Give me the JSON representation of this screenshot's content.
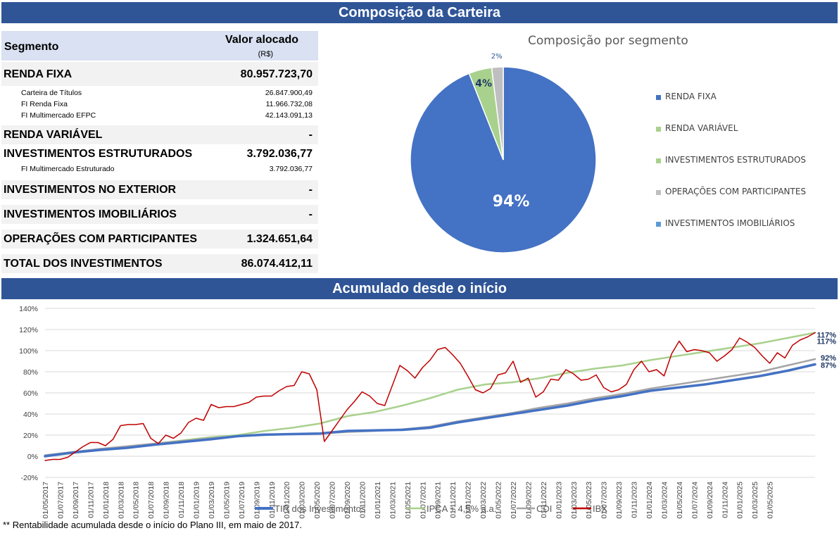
{
  "banner_top": "Composição da Carteira",
  "banner_bottom": "Acumulado desde o início",
  "table": {
    "header_segment": "Segmento",
    "header_value": "Valor alocado",
    "header_unit": "(R$)",
    "rows": [
      {
        "kind": "main",
        "label": "RENDA FIXA",
        "value": "80.957.723,70",
        "shaded": true
      },
      {
        "kind": "sub",
        "label": "Carteira de Títulos",
        "value": "26.847.900,49",
        "shaded": false
      },
      {
        "kind": "sub",
        "label": "FI Renda Fixa",
        "value": "11.966.732,08",
        "shaded": false
      },
      {
        "kind": "sub",
        "label": "FI Multimercado EFPC",
        "value": "42.143.091,13",
        "shaded": false
      },
      {
        "kind": "main",
        "label": "RENDA VARIÁVEL",
        "value": "-",
        "shaded": true
      },
      {
        "kind": "main",
        "label": "INVESTIMENTOS ESTRUTURADOS",
        "value": "3.792.036,77",
        "shaded": false
      },
      {
        "kind": "sub",
        "label": "FI Multimercado Estruturado",
        "value": "3.792.036,77",
        "shaded": false
      },
      {
        "kind": "main",
        "label": "INVESTIMENTOS NO EXTERIOR",
        "value": "-",
        "shaded": true
      },
      {
        "kind": "main",
        "label": "INVESTIMENTOS IMOBILIÁRIOS",
        "value": "-",
        "shaded": true
      },
      {
        "kind": "main",
        "label": "OPERAÇÕES COM PARTICIPANTES",
        "value": "1.324.651,64",
        "shaded": true
      },
      {
        "kind": "main",
        "label": "TOTAL DOS INVESTIMENTOS",
        "value": "86.074.412,11",
        "shaded": true
      }
    ]
  },
  "footnote": "** Rentabilidade acumulada desde o início do Plano III, em maio de 2017.",
  "chart_data": [
    {
      "type": "pie",
      "title": "Composição por segmento",
      "slices": [
        {
          "name": "RENDA FIXA",
          "value": 94,
          "label": "94%",
          "color": "#4472c4"
        },
        {
          "name": "RENDA VARIÁVEL",
          "value": 0,
          "label": "",
          "color": "#a9d18e"
        },
        {
          "name": "INVESTIMENTOS ESTRUTURADOS",
          "value": 4,
          "label": "4%",
          "color": "#a9d18e"
        },
        {
          "name": "OPERAÇÕES COM PARTICIPANTES",
          "value": 2,
          "label": "2%",
          "color": "#bfbfbf"
        },
        {
          "name": "INVESTIMENTOS IMOBILIÁRIOS",
          "value": 0,
          "label": "",
          "color": "#5b9bd5"
        }
      ],
      "legend_position": "right"
    },
    {
      "type": "line",
      "title": "",
      "x_ticks": [
        "01/05/2017",
        "01/07/2017",
        "01/09/2017",
        "01/11/2017",
        "01/01/2018",
        "01/03/2018",
        "01/05/2018",
        "01/07/2018",
        "01/09/2018",
        "01/11/2018",
        "01/01/2019",
        "01/03/2019",
        "01/05/2019",
        "01/07/2019",
        "01/09/2019",
        "01/11/2019",
        "01/01/2020",
        "01/03/2020",
        "01/05/2020",
        "01/07/2020",
        "01/09/2020",
        "01/11/2020",
        "01/01/2021",
        "01/03/2021",
        "01/05/2021",
        "01/07/2021",
        "01/09/2021",
        "01/11/2021",
        "01/01/2022",
        "01/03/2022",
        "01/05/2022",
        "01/07/2022",
        "01/09/2022",
        "01/11/2022",
        "01/01/2023",
        "01/03/2023",
        "01/05/2023",
        "01/07/2023",
        "01/09/2023",
        "01/11/2023",
        "01/01/2024",
        "01/03/2024",
        "01/05/2024",
        "01/07/2024",
        "01/09/2024",
        "01/11/2024",
        "01/01/2025",
        "01/03/2025",
        "01/05/2025"
      ],
      "y_ticks": [
        "-20%",
        "0%",
        "20%",
        "40%",
        "60%",
        "80%",
        "100%",
        "120%",
        "140%"
      ],
      "ylim": [
        -20,
        140
      ],
      "x_start_month": "2017-05",
      "grid": true,
      "legend_position": "bottom",
      "series": [
        {
          "name": "TIR dos Investimentos",
          "color": "#4472c4",
          "width": 3.5,
          "end_label": "87%",
          "points": [
            [
              0,
              0
            ],
            [
              6,
              3.5
            ],
            [
              12,
              6
            ],
            [
              18,
              8
            ],
            [
              24,
              11
            ],
            [
              30,
              13.5
            ],
            [
              36,
              16
            ],
            [
              42,
              19
            ],
            [
              48,
              20.5
            ],
            [
              54,
              21
            ],
            [
              60,
              21.5
            ],
            [
              66,
              24
            ],
            [
              72,
              24.5
            ],
            [
              78,
              25
            ],
            [
              84,
              27
            ],
            [
              90,
              32
            ],
            [
              96,
              36
            ],
            [
              102,
              40
            ],
            [
              108,
              44
            ],
            [
              114,
              48
            ],
            [
              120,
              53
            ],
            [
              126,
              57
            ],
            [
              132,
              62
            ],
            [
              138,
              65
            ],
            [
              144,
              68
            ],
            [
              150,
              72
            ],
            [
              156,
              76
            ],
            [
              162,
              81
            ],
            [
              168,
              87
            ]
          ]
        },
        {
          "name": "IPCA + 4,5% a.a.",
          "color": "#a9d18e",
          "width": 2.5,
          "end_label": "117%",
          "points": [
            [
              0,
              0
            ],
            [
              6,
              3
            ],
            [
              12,
              6
            ],
            [
              18,
              9
            ],
            [
              24,
              12
            ],
            [
              30,
              15
            ],
            [
              36,
              18
            ],
            [
              42,
              20
            ],
            [
              48,
              24
            ],
            [
              54,
              27
            ],
            [
              60,
              31
            ],
            [
              66,
              38
            ],
            [
              72,
              42
            ],
            [
              78,
              48
            ],
            [
              84,
              55
            ],
            [
              90,
              63
            ],
            [
              96,
              68
            ],
            [
              102,
              70
            ],
            [
              108,
              74
            ],
            [
              114,
              79
            ],
            [
              120,
              83
            ],
            [
              126,
              86
            ],
            [
              132,
              91
            ],
            [
              138,
              95
            ],
            [
              144,
              99
            ],
            [
              150,
              103
            ],
            [
              156,
              107
            ],
            [
              162,
              112
            ],
            [
              168,
              117
            ]
          ]
        },
        {
          "name": "CDI",
          "color": "#a5a5a5",
          "width": 2.5,
          "end_label": "92%",
          "points": [
            [
              0,
              1
            ],
            [
              6,
              4
            ],
            [
              12,
              7
            ],
            [
              18,
              9.5
            ],
            [
              24,
              12
            ],
            [
              30,
              14.5
            ],
            [
              36,
              17
            ],
            [
              42,
              19
            ],
            [
              48,
              20
            ],
            [
              54,
              21
            ],
            [
              60,
              21.5
            ],
            [
              66,
              23
            ],
            [
              72,
              24
            ],
            [
              78,
              25.5
            ],
            [
              84,
              28
            ],
            [
              90,
              33
            ],
            [
              96,
              37
            ],
            [
              102,
              41
            ],
            [
              108,
              46
            ],
            [
              114,
              50
            ],
            [
              120,
              55
            ],
            [
              126,
              59
            ],
            [
              132,
              64
            ],
            [
              138,
              68
            ],
            [
              144,
              72
            ],
            [
              150,
              76
            ],
            [
              156,
              80
            ],
            [
              162,
              86
            ],
            [
              168,
              92
            ]
          ]
        },
        {
          "name": "IBX",
          "color": "#c00000",
          "width": 1.5,
          "end_label": "117%",
          "points": [
            [
              0,
              -4
            ],
            [
              1,
              -3
            ],
            [
              2,
              -3
            ],
            [
              3,
              -1
            ],
            [
              4,
              4
            ],
            [
              5,
              9
            ],
            [
              6,
              13
            ],
            [
              7,
              13
            ],
            [
              8,
              10
            ],
            [
              9,
              16
            ],
            [
              10,
              29
            ],
            [
              11,
              30
            ],
            [
              12,
              30
            ],
            [
              13,
              31
            ],
            [
              14,
              17
            ],
            [
              15,
              12
            ],
            [
              16,
              20
            ],
            [
              17,
              17
            ],
            [
              18,
              22
            ],
            [
              19,
              32
            ],
            [
              20,
              36
            ],
            [
              21,
              34
            ],
            [
              22,
              49
            ],
            [
              23,
              46
            ],
            [
              24,
              47
            ],
            [
              25,
              47
            ],
            [
              26,
              49
            ],
            [
              27,
              51
            ],
            [
              28,
              56
            ],
            [
              29,
              57
            ],
            [
              30,
              57
            ],
            [
              31,
              62
            ],
            [
              32,
              66
            ],
            [
              33,
              67
            ],
            [
              34,
              80
            ],
            [
              35,
              78
            ],
            [
              36,
              63
            ],
            [
              37,
              14
            ],
            [
              38,
              24
            ],
            [
              39,
              34
            ],
            [
              40,
              44
            ],
            [
              41,
              52
            ],
            [
              42,
              61
            ],
            [
              43,
              57
            ],
            [
              44,
              50
            ],
            [
              45,
              48
            ],
            [
              46,
              67
            ],
            [
              47,
              86
            ],
            [
              48,
              81
            ],
            [
              49,
              74
            ],
            [
              50,
              84
            ],
            [
              51,
              91
            ],
            [
              52,
              101
            ],
            [
              53,
              103
            ],
            [
              54,
              96
            ],
            [
              55,
              88
            ],
            [
              56,
              76
            ],
            [
              57,
              63
            ],
            [
              58,
              60
            ],
            [
              59,
              64
            ],
            [
              60,
              77
            ],
            [
              61,
              79
            ],
            [
              62,
              90
            ],
            [
              63,
              70
            ],
            [
              64,
              74
            ],
            [
              65,
              56
            ],
            [
              66,
              61
            ],
            [
              67,
              73
            ],
            [
              68,
              72
            ],
            [
              69,
              82
            ],
            [
              70,
              78
            ],
            [
              71,
              72
            ],
            [
              72,
              73
            ],
            [
              73,
              77
            ],
            [
              74,
              65
            ],
            [
              75,
              61
            ],
            [
              76,
              63
            ],
            [
              77,
              68
            ],
            [
              78,
              82
            ],
            [
              79,
              90
            ],
            [
              80,
              80
            ],
            [
              81,
              82
            ],
            [
              82,
              76
            ],
            [
              83,
              97
            ],
            [
              84,
              109
            ],
            [
              85,
              99
            ],
            [
              86,
              101
            ],
            [
              87,
              100
            ],
            [
              88,
              98
            ],
            [
              89,
              90
            ],
            [
              90,
              95
            ],
            [
              91,
              101
            ],
            [
              92,
              112
            ],
            [
              93,
              108
            ],
            [
              94,
              103
            ],
            [
              95,
              95
            ],
            [
              96,
              88
            ],
            [
              97,
              98
            ],
            [
              98,
              93
            ],
            [
              99,
              105
            ],
            [
              100,
              110
            ],
            [
              101,
              113
            ],
            [
              102,
              117
            ]
          ]
        }
      ]
    }
  ]
}
